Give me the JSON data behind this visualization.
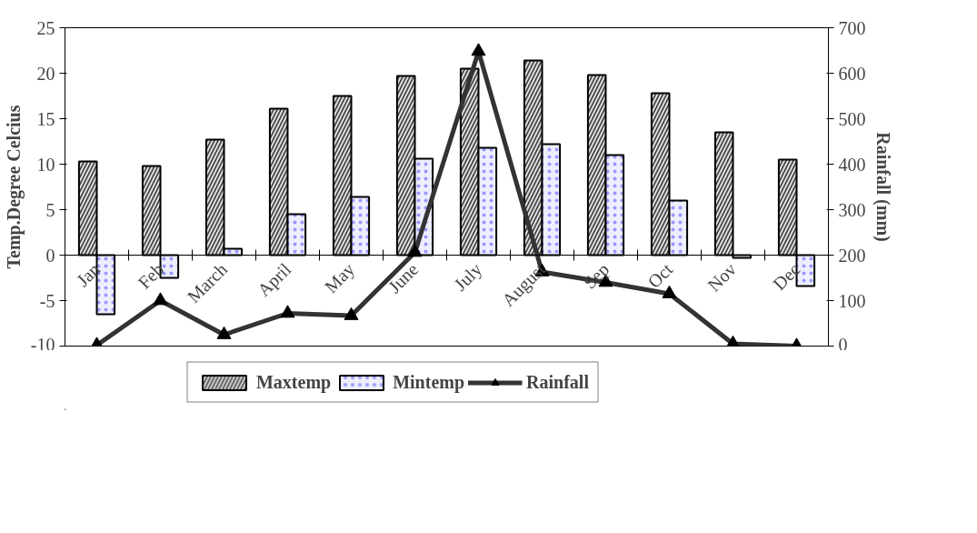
{
  "chart_data": {
    "type": "bar",
    "ylabel": "Temp.Degree Celcius",
    "y2label": "Rainfall (mm)",
    "categories": [
      "Jan",
      "Feb",
      "March",
      "April",
      "May",
      "June",
      "July",
      "August",
      "Sep",
      "Oct",
      "Nov",
      "Dec"
    ],
    "series": [
      {
        "name": "Maxtemp",
        "color": "#3c3c3c",
        "values": [
          10.3,
          9.8,
          12.7,
          16.1,
          17.5,
          19.7,
          20.5,
          21.4,
          19.8,
          17.8,
          13.5,
          10.5
        ]
      },
      {
        "name": "Mintemp",
        "color": "#eeeeff",
        "values": [
          -6.5,
          -2.5,
          0.7,
          4.5,
          6.4,
          10.6,
          11.8,
          12.2,
          11.0,
          6.0,
          -0.3,
          -3.4
        ]
      },
      {
        "name": "Rainfall",
        "type": "line",
        "axis": "y2",
        "color": "#333333",
        "marker": "triangle",
        "values": [
          2,
          100,
          25,
          72,
          67,
          206,
          648,
          163,
          140,
          115,
          5,
          0
        ]
      }
    ],
    "ylim": [
      -10,
      25
    ],
    "yticks": [
      -10,
      -5,
      0,
      5,
      10,
      15,
      20,
      25
    ],
    "y2lim": [
      0,
      700
    ],
    "y2ticks": [
      0,
      100,
      200,
      300,
      400,
      500,
      600,
      700
    ],
    "grid": false,
    "legend": "bottom"
  }
}
